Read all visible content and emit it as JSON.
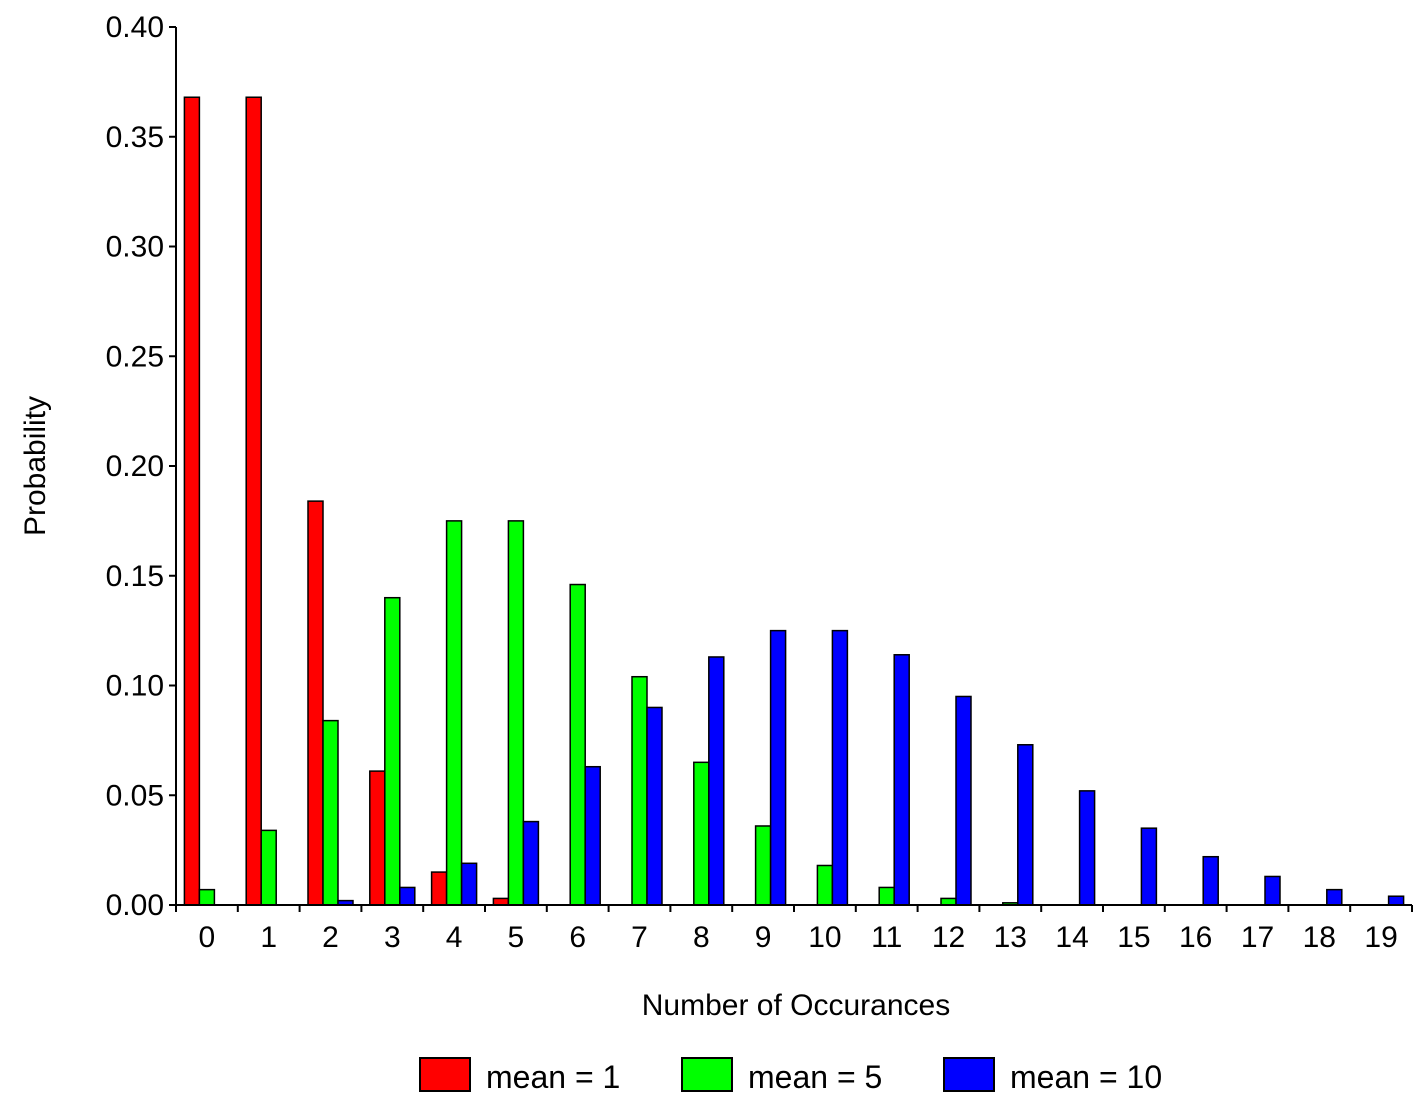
{
  "chart_data": {
    "type": "bar",
    "xlabel": "Number of Occurances",
    "ylabel": "Probability",
    "ylim": [
      0,
      0.4
    ],
    "yticks": [
      "0.00",
      "0.05",
      "0.10",
      "0.15",
      "0.20",
      "0.25",
      "0.30",
      "0.35",
      "0.40"
    ],
    "categories": [
      "0",
      "1",
      "2",
      "3",
      "4",
      "5",
      "6",
      "7",
      "8",
      "9",
      "10",
      "11",
      "12",
      "13",
      "14",
      "15",
      "16",
      "17",
      "18",
      "19"
    ],
    "grid": false,
    "legend_position": "bottom",
    "series": [
      {
        "name": "mean = 1",
        "color": "#ff0000",
        "values": [
          0.368,
          0.368,
          0.184,
          0.061,
          0.015,
          0.003,
          0,
          0,
          0,
          0,
          0,
          0,
          0,
          0,
          0,
          0,
          0,
          0,
          0,
          0
        ]
      },
      {
        "name": "mean = 5",
        "color": "#00ff00",
        "values": [
          0.007,
          0.034,
          0.084,
          0.14,
          0.175,
          0.175,
          0.146,
          0.104,
          0.065,
          0.036,
          0.018,
          0.008,
          0.003,
          0.001,
          0,
          0,
          0,
          0,
          0,
          0
        ]
      },
      {
        "name": "mean = 10",
        "color": "#0000ff",
        "values": [
          0,
          0,
          0.002,
          0.008,
          0.019,
          0.038,
          0.063,
          0.09,
          0.113,
          0.125,
          0.125,
          0.114,
          0.095,
          0.073,
          0.052,
          0.035,
          0.022,
          0.013,
          0.007,
          0.004
        ]
      }
    ]
  }
}
